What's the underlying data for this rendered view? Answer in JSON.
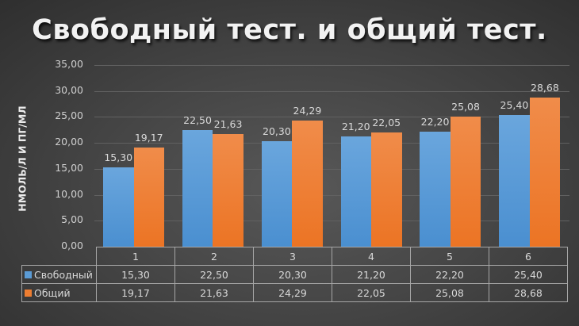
{
  "title": "Свободный тест. и общий тест.",
  "colors": {
    "series0": "#5b9bd5",
    "series1": "#ed7d31"
  },
  "chart_data": {
    "type": "bar",
    "title": "Свободный тест. и общий тест.",
    "xlabel": "",
    "ylabel": "НМОЛЬ/Л И ПГ/МЛ",
    "ylim": [
      0,
      35
    ],
    "yticks": [
      "0,00",
      "5,00",
      "10,00",
      "15,00",
      "20,00",
      "25,00",
      "30,00",
      "35,00"
    ],
    "grid": true,
    "legend_position": "data-table",
    "categories": [
      "1",
      "2",
      "3",
      "4",
      "5",
      "6"
    ],
    "series": [
      {
        "name": "Свободный",
        "values": [
          15.3,
          22.5,
          20.3,
          21.2,
          22.2,
          25.4
        ],
        "labels": [
          "15,30",
          "22,50",
          "20,30",
          "21,20",
          "22,20",
          "25,40"
        ]
      },
      {
        "name": "Общий",
        "values": [
          19.17,
          21.63,
          24.29,
          22.05,
          25.08,
          28.68
        ],
        "labels": [
          "19,17",
          "21,63",
          "24,29",
          "22,05",
          "25,08",
          "28,68"
        ]
      }
    ]
  }
}
